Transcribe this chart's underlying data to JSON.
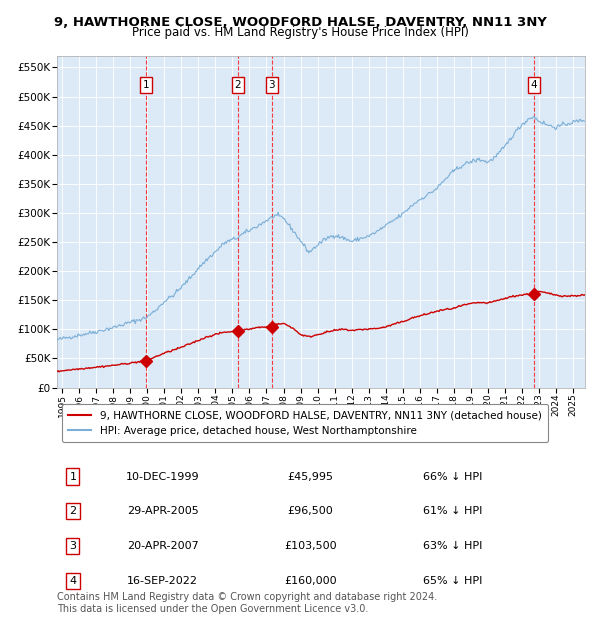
{
  "title": "9, HAWTHORNE CLOSE, WOODFORD HALSE, DAVENTRY, NN11 3NY",
  "subtitle": "Price paid vs. HM Land Registry's House Price Index (HPI)",
  "title_fontsize": 9.5,
  "subtitle_fontsize": 8.5,
  "plot_bg_color": "#dce9f7",
  "fig_bg_color": "#ffffff",
  "ylim": [
    0,
    570000
  ],
  "yticks": [
    0,
    50000,
    100000,
    150000,
    200000,
    250000,
    300000,
    350000,
    400000,
    450000,
    500000,
    550000
  ],
  "ytick_labels": [
    "£0",
    "£50K",
    "£100K",
    "£150K",
    "£200K",
    "£250K",
    "£300K",
    "£350K",
    "£400K",
    "£450K",
    "£500K",
    "£550K"
  ],
  "xlim_start": 1994.7,
  "xlim_end": 2025.7,
  "xtick_years": [
    1995,
    1996,
    1997,
    1998,
    1999,
    2000,
    2001,
    2002,
    2003,
    2004,
    2005,
    2006,
    2007,
    2008,
    2009,
    2010,
    2011,
    2012,
    2013,
    2014,
    2015,
    2016,
    2017,
    2018,
    2019,
    2020,
    2021,
    2022,
    2023,
    2024,
    2025
  ],
  "sale_dates": [
    1999.94,
    2005.33,
    2007.31,
    2022.71
  ],
  "sale_prices": [
    45995,
    96500,
    103500,
    160000
  ],
  "sale_labels": [
    "1",
    "2",
    "3",
    "4"
  ],
  "sale_color": "#cc0000",
  "hpi_line_color": "#7aaed6",
  "red_line_color": "#cc0000",
  "legend_entries": [
    "9, HAWTHORNE CLOSE, WOODFORD HALSE, DAVENTRY, NN11 3NY (detached house)",
    "HPI: Average price, detached house, West Northamptonshire"
  ],
  "table_rows": [
    [
      "1",
      "10-DEC-1999",
      "£45,995",
      "66% ↓ HPI"
    ],
    [
      "2",
      "29-APR-2005",
      "£96,500",
      "61% ↓ HPI"
    ],
    [
      "3",
      "20-APR-2007",
      "£103,500",
      "63% ↓ HPI"
    ],
    [
      "4",
      "16-SEP-2022",
      "£160,000",
      "65% ↓ HPI"
    ]
  ],
  "footer": "Contains HM Land Registry data © Crown copyright and database right 2024.\nThis data is licensed under the Open Government Licence v3.0.",
  "footer_fontsize": 7.0
}
